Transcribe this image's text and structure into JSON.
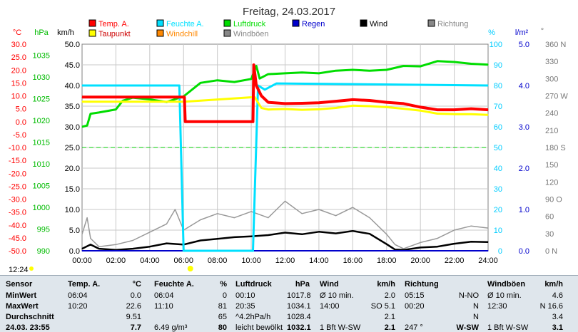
{
  "chart_data": {
    "type": "line",
    "title": "Freitag, 24.03.2017",
    "x_ticks": [
      "00:00",
      "02:00",
      "04:00",
      "06:00",
      "08:00",
      "10:00",
      "12:00",
      "14:00",
      "16:00",
      "18:00",
      "20:00",
      "22:00",
      "24:00"
    ],
    "xlim": [
      0,
      24
    ],
    "legend": [
      {
        "name": "Temp. A.",
        "color": "#ff0000"
      },
      {
        "name": "Feuchte A.",
        "color": "#00e0ff"
      },
      {
        "name": "Luftdruck",
        "color": "#00dd00"
      },
      {
        "name": "Regen",
        "color": "#0000cc"
      },
      {
        "name": "Wind",
        "color": "#000000"
      },
      {
        "name": "Richtung",
        "color": "#888888"
      },
      {
        "name": "Taupunkt",
        "color": "#ffff00"
      },
      {
        "name": "Windchill",
        "color": "#ff8800"
      },
      {
        "name": "Windböen",
        "color": "#888888"
      }
    ],
    "axes": {
      "temp": {
        "unit": "°C",
        "min": -50,
        "max": 30,
        "ticks": [
          "30.0",
          "25.0",
          "20.0",
          "15.0",
          "10.0",
          "5.0",
          "0.0",
          "-5.0",
          "-10.0",
          "-15.0",
          "-20.0",
          "-25.0",
          "-30.0",
          "-35.0",
          "-40.0",
          "-45.0",
          "-50.0"
        ]
      },
      "press": {
        "unit": "hPa",
        "min": 990,
        "max": 1037.5,
        "ticks": [
          "1035",
          "1030",
          "1025",
          "1020",
          "1015",
          "1010",
          "1005",
          "1000",
          "995",
          "990"
        ]
      },
      "wind": {
        "unit": "km/h",
        "min": 0,
        "max": 50,
        "ticks": [
          "50.0",
          "45.0",
          "40.0",
          "35.0",
          "30.0",
          "25.0",
          "20.0",
          "15.0",
          "10.0",
          "5.0",
          "0.0"
        ]
      },
      "hum": {
        "unit": "%",
        "min": 0,
        "max": 100,
        "ticks": [
          "100",
          "90",
          "80",
          "70",
          "60",
          "50",
          "40",
          "30",
          "20",
          "10",
          "0"
        ]
      },
      "rain": {
        "unit": "l/m²",
        "min": 0,
        "max": 5,
        "ticks": [
          "5.0",
          "4.0",
          "3.0",
          "2.0",
          "1.0",
          "0.0"
        ]
      },
      "dir": {
        "unit": "°",
        "ticks": [
          "360 N",
          "330",
          "300",
          "270 W",
          "240",
          "210",
          "180 S",
          "150",
          "120",
          "90 O",
          "60",
          "30",
          "0 N"
        ]
      }
    },
    "series": [
      {
        "name": "Temp. A.",
        "axis": "temp",
        "color": "#ff0000",
        "x": [
          0,
          6.05,
          6.1,
          10.1,
          10.15,
          10.3,
          10.6,
          11,
          12,
          13,
          14,
          15,
          16,
          17,
          18,
          19,
          20,
          21,
          22,
          23,
          24
        ],
        "y": [
          9.5,
          9.5,
          0.0,
          0.0,
          22.0,
          14.0,
          10.0,
          7.5,
          7.0,
          7.1,
          7.3,
          7.9,
          8.5,
          8.2,
          7.5,
          7.0,
          5.6,
          4.6,
          4.6,
          5.0,
          4.6
        ]
      },
      {
        "name": "Taupunkt",
        "axis": "temp",
        "color": "#ffff00",
        "x": [
          0,
          6.05,
          10.2,
          10.6,
          11,
          12,
          13,
          14,
          15,
          16,
          17,
          18,
          19,
          20,
          21,
          22,
          23,
          24
        ],
        "y": [
          7.7,
          7.7,
          9.5,
          5.3,
          4.7,
          4.9,
          4.6,
          4.8,
          5.3,
          6.2,
          6.0,
          5.6,
          5.0,
          4.3,
          3.1,
          2.9,
          2.9,
          2.6
        ]
      },
      {
        "name": "Feuchte A.",
        "axis": "hum",
        "color": "#00e0ff",
        "x": [
          0,
          5.75,
          6.0,
          10.1,
          10.4,
          10.8,
          11.5,
          24
        ],
        "y": [
          80,
          80,
          0,
          0,
          80,
          78,
          81,
          80
        ]
      },
      {
        "name": "Luftdruck",
        "axis": "press",
        "color": "#00dd00",
        "x": [
          0,
          0.3,
          0.5,
          1,
          2,
          2.4,
          3,
          4,
          5,
          6,
          7,
          8,
          9,
          10,
          10.3,
          10.5,
          11,
          12,
          13,
          14,
          15,
          16,
          17,
          18,
          19,
          20,
          21,
          22,
          23,
          24
        ],
        "y": [
          1018.5,
          1018.8,
          1021.5,
          1021.8,
          1022.5,
          1024.5,
          1025.2,
          1024.8,
          1024.2,
          1025.5,
          1028.6,
          1029.2,
          1028.8,
          1029.5,
          1032.5,
          1029.6,
          1030.6,
          1030.8,
          1031.0,
          1030.8,
          1031.4,
          1031.6,
          1031.4,
          1031.6,
          1032.5,
          1032.4,
          1033.6,
          1033.4,
          1033.0,
          1032.8
        ]
      },
      {
        "name": "Wind",
        "axis": "wind",
        "color": "#000000",
        "x": [
          0,
          0.5,
          1,
          2,
          3,
          4,
          5,
          6,
          7,
          8,
          9,
          10,
          11,
          12,
          13,
          14,
          15,
          16,
          17,
          18,
          18.5,
          19,
          20,
          21,
          22,
          23,
          24
        ],
        "y": [
          0.5,
          1.5,
          0.5,
          0.2,
          0.5,
          1.0,
          1.8,
          1.5,
          2.5,
          2.9,
          3.3,
          3.5,
          3.8,
          4.4,
          4.0,
          4.6,
          4.2,
          4.8,
          4.1,
          1.6,
          0.3,
          0.2,
          0.8,
          1.0,
          1.7,
          2.2,
          2.1
        ]
      },
      {
        "name": "Windböen",
        "axis": "wind",
        "color": "#999999",
        "x": [
          0,
          0.3,
          0.5,
          1,
          2,
          3,
          4,
          5,
          5.5,
          6,
          7,
          8,
          9,
          10,
          11,
          12,
          13,
          14,
          15,
          16,
          17,
          18,
          18.5,
          19,
          20,
          21,
          22,
          23,
          24
        ],
        "y": [
          4.0,
          8.0,
          3.0,
          1.0,
          1.5,
          2.5,
          4.5,
          6.5,
          10.0,
          5.0,
          7.5,
          9.0,
          8.0,
          9.5,
          8.0,
          12.0,
          9.0,
          10.0,
          8.5,
          10.5,
          8.0,
          4.0,
          1.5,
          0.5,
          2.0,
          3.0,
          5.0,
          6.0,
          5.5
        ]
      },
      {
        "name": "Regen",
        "axis": "rain",
        "color": "#0000cc",
        "x": [
          0,
          24
        ],
        "y": [
          0,
          0
        ]
      }
    ],
    "now_markers": [
      {
        "time": "12:24",
        "x": 12.4
      }
    ]
  },
  "stats": {
    "headers": [
      "Sensor",
      "Temp. A.",
      "°C",
      "Feuchte A.",
      "%",
      "Luftdruck",
      "hPa",
      "Wind",
      "km/h",
      "Richtung",
      "Windböen",
      "km/h"
    ],
    "rows": [
      {
        "label": "MinWert",
        "cells": [
          "06:04",
          "0.0",
          "06:04",
          "0",
          "00:10",
          "1017.8",
          "Ø 10 min.",
          "2.0",
          "05:15",
          "N-NO",
          "Ø 10 min.",
          "4.6"
        ]
      },
      {
        "label": "MaxWert",
        "cells": [
          "10:20",
          "22.6",
          "11:10",
          "81",
          "20:35",
          "1034.1",
          "14:00",
          "SO 5.1",
          "00:20",
          "N",
          "12:30",
          "N 16.6"
        ]
      },
      {
        "label": "Durchschnitt",
        "cells": [
          "",
          "9.51",
          "",
          "65",
          "^4.2hPa/h",
          "1028.4",
          "",
          "2.1",
          "",
          "N",
          "",
          "3.4"
        ]
      },
      {
        "label": "24.03. 23:55",
        "cells": [
          "",
          "7.7",
          "6.49 g/m³",
          "80",
          "leicht bewölkt",
          "1032.1",
          "1 Bft W-SW",
          "2.1",
          "247 °",
          "W-SW",
          "1 Bft W-SW",
          "3.1"
        ]
      }
    ]
  }
}
